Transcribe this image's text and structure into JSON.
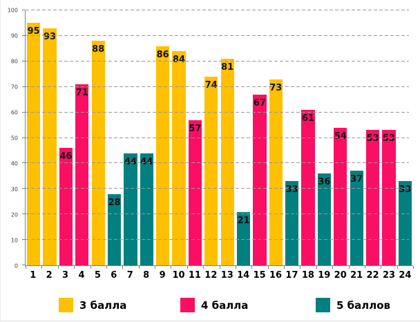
{
  "chart_data": {
    "type": "bar",
    "title": "",
    "xlabel": "",
    "ylabel": "",
    "categories": [
      "1",
      "2",
      "3",
      "4",
      "5",
      "6",
      "7",
      "8",
      "9",
      "10",
      "11",
      "12",
      "13",
      "14",
      "15",
      "16",
      "17",
      "18",
      "19",
      "20",
      "21",
      "22",
      "23",
      "24"
    ],
    "values": [
      95,
      93,
      46,
      71,
      88,
      28,
      44,
      44,
      86,
      84,
      57,
      74,
      81,
      21,
      67,
      73,
      33,
      61,
      36,
      54,
      37,
      53,
      53,
      33
    ],
    "bar_series": [
      0,
      0,
      1,
      1,
      0,
      2,
      2,
      2,
      0,
      0,
      1,
      0,
      0,
      2,
      1,
      0,
      2,
      1,
      2,
      1,
      2,
      1,
      1,
      2
    ],
    "legend": [
      {
        "label": "3 балла",
        "color": "#FFC000"
      },
      {
        "label": "4 балла",
        "color": "#FA0F64"
      },
      {
        "label": "5 баллов",
        "color": "#027F80"
      }
    ],
    "ylim": [
      0,
      100
    ],
    "ytick_step": 10,
    "ytick_labels": [
      "0",
      "10",
      "20",
      "30",
      "40",
      "50",
      "60",
      "70",
      "80",
      "90",
      "100"
    ],
    "grid": "horizontal-dashed",
    "legend_position": "bottom",
    "value_labels": "inside-top, bold black"
  },
  "colors": {
    "gridline": "#999999",
    "axis": "#7f7f7f",
    "value_label": "#111111",
    "background": "#ffffff"
  }
}
